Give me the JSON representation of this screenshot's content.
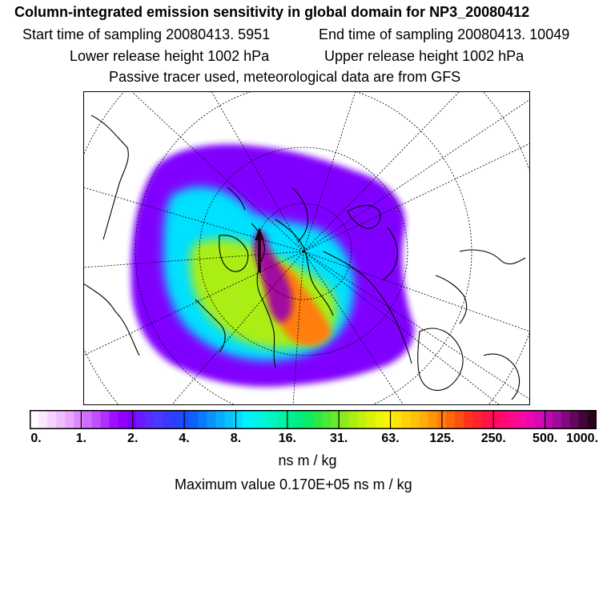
{
  "header": {
    "title": "Column-integrated emission sensitivity in global domain for NP3_20080412",
    "start_time": "Start time of sampling 20080413.  5951",
    "end_time": "End time of sampling 20080413. 10049",
    "lower_release": "Lower release height 1002 hPa",
    "upper_release": "Upper release height 1002 hPa",
    "tracer_info": "Passive tracer used, meteorological data are from GFS"
  },
  "colorbar": {
    "tick_labels": [
      "0.",
      "1.",
      "2.",
      "4.",
      "8.",
      "16.",
      "31.",
      "63.",
      "125.",
      "250.",
      "500.",
      "1000."
    ],
    "colors": [
      "#ffffff",
      "#fbe8ff",
      "#f6d2ff",
      "#f0bcff",
      "#eaa6ff",
      "#de88ff",
      "#d06cff",
      "#c050ff",
      "#b030ff",
      "#a010ff",
      "#9000ff",
      "#8000ff",
      "#6a1aff",
      "#5a2aff",
      "#4a3aff",
      "#3a3aff",
      "#2a3eff",
      "#1a4eff",
      "#0c62ff",
      "#0a7aff",
      "#0a92ff",
      "#0aaaff",
      "#0ac2ff",
      "#0adaff",
      "#00f2ff",
      "#00f4ea",
      "#00f6d4",
      "#00f6be",
      "#00f4a8",
      "#00f092",
      "#00ec7c",
      "#10ea62",
      "#2ae84a",
      "#4ae83a",
      "#6aea2a",
      "#8aec1c",
      "#aaee12",
      "#c4f00c",
      "#daf20a",
      "#eef40a",
      "#fff20a",
      "#ffe20a",
      "#ffd20a",
      "#ffc20a",
      "#ffae0a",
      "#ff960a",
      "#ff7e0a",
      "#ff660c",
      "#ff4e12",
      "#ff361c",
      "#ff2430",
      "#ff1446",
      "#ff0a5c",
      "#ff0a74",
      "#ff0a8c",
      "#f60aa2",
      "#e80aae",
      "#d40ab4",
      "#bc0ab0",
      "#a00a9e",
      "#82087e",
      "#62065a",
      "#42043a",
      "#28021e"
    ]
  },
  "units": "ns m / kg",
  "max_value": "Maximum value  0.170E+05 ns m / kg",
  "map": {
    "region": "Northern polar stereographic",
    "plume_colors": {
      "outer": "#8000ff",
      "mid": "#00e0ff",
      "inner": "#aaee12",
      "core": "#ff7e0a",
      "peak": "#a00a9e"
    }
  }
}
